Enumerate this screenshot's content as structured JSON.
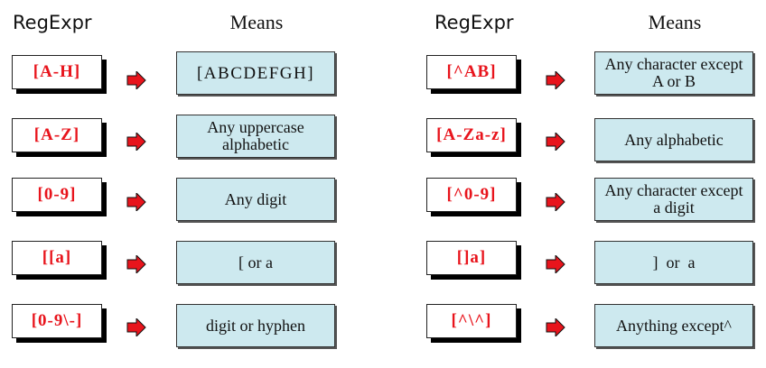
{
  "left_column": {
    "regexpr_header": "RegExpr",
    "means_header": "Means",
    "rows": [
      {
        "expr": "[A-H]",
        "meaning": "[ABCDEFGH]"
      },
      {
        "expr": "[A-Z]",
        "meaning": "Any uppercase alphabetic"
      },
      {
        "expr": "[0-9]",
        "meaning": "Any digit"
      },
      {
        "expr": "[[a]",
        "meaning": "[ or a"
      },
      {
        "expr": "[0-9\\-]",
        "meaning": "digit or hyphen"
      }
    ]
  },
  "right_column": {
    "regexpr_header": "RegExpr",
    "means_header": "Means",
    "rows": [
      {
        "expr": "[^AB]",
        "meaning": "Any character except A or B"
      },
      {
        "expr": "[A-Za-z]",
        "meaning": "Any alphabetic"
      },
      {
        "expr": "[^0-9]",
        "meaning": "Any character except a digit"
      },
      {
        "expr": "[]a]",
        "meaning": "]  or  a"
      },
      {
        "expr": "[^\\^]",
        "meaning": "Anything except^"
      }
    ]
  },
  "colors": {
    "expr_text": "#e8141c",
    "arrow_fill": "#e8141c",
    "meaning_box_fill": "#cde9ef"
  },
  "icons": {
    "arrow": "right-arrow-icon"
  }
}
